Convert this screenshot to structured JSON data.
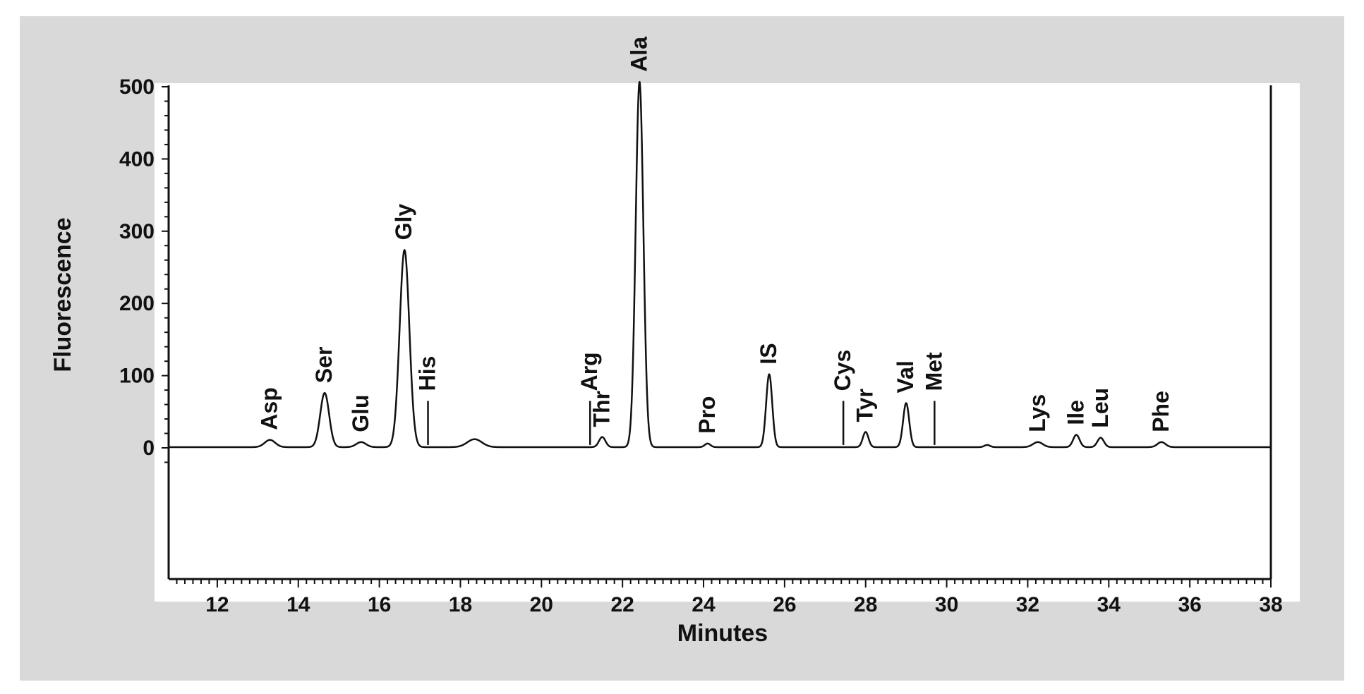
{
  "chart_data": {
    "type": "line",
    "xlabel": "Minutes",
    "ylabel": "Fluorescence",
    "xlim": [
      10.8,
      38
    ],
    "ylim": [
      -30,
      525
    ],
    "xticks": [
      12,
      14,
      16,
      18,
      20,
      22,
      24,
      26,
      28,
      30,
      32,
      34,
      36,
      38
    ],
    "yticks": [
      0,
      100,
      200,
      300,
      400,
      500
    ],
    "grid": false,
    "baseline": 1,
    "peaks": [
      {
        "label": "Asp",
        "t": 13.3,
        "h": 10,
        "w": 0.13
      },
      {
        "label": "Ser",
        "t": 14.65,
        "h": 75,
        "w": 0.11
      },
      {
        "label": "Glu",
        "t": 15.55,
        "h": 7,
        "w": 0.12
      },
      {
        "label": "Gly",
        "t": 16.62,
        "h": 273,
        "w": 0.12
      },
      {
        "label": "",
        "t": 18.35,
        "h": 11,
        "w": 0.18
      },
      {
        "label": "Thr",
        "t": 21.5,
        "h": 14,
        "w": 0.08
      },
      {
        "label": "Ala",
        "t": 22.42,
        "h": 506,
        "w": 0.095
      },
      {
        "label": "Pro",
        "t": 24.1,
        "h": 5,
        "w": 0.07
      },
      {
        "label": "IS",
        "t": 25.62,
        "h": 101,
        "w": 0.075
      },
      {
        "label": "Tyr",
        "t": 28.0,
        "h": 21,
        "w": 0.07
      },
      {
        "label": "Val",
        "t": 29.0,
        "h": 61,
        "w": 0.075
      },
      {
        "label": "",
        "t": 31.0,
        "h": 3,
        "w": 0.07
      },
      {
        "label": "Lys",
        "t": 32.25,
        "h": 7,
        "w": 0.12
      },
      {
        "label": "Ile",
        "t": 33.2,
        "h": 17,
        "w": 0.08
      },
      {
        "label": "Leu",
        "t": 33.8,
        "h": 13,
        "w": 0.08
      },
      {
        "label": "Phe",
        "t": 35.3,
        "h": 7,
        "w": 0.1
      }
    ],
    "markers": [
      {
        "label": "His",
        "t": 17.2
      },
      {
        "label": "Arg",
        "t": 21.2
      },
      {
        "label": "Cys",
        "t": 27.45
      },
      {
        "label": "Met",
        "t": 29.7
      }
    ],
    "line_color": "#111111",
    "background_color": "#d9d9d9",
    "plot_color": "#ffffff"
  }
}
